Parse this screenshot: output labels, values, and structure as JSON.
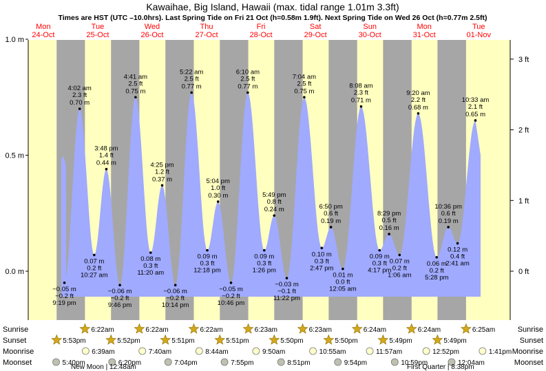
{
  "title": "Kawaihae, Big Island, Hawaii (max. tidal range 1.01m 3.3ft)",
  "subtitle": "Times are HST (UTC –10.0hrs). Last Spring Tide on Fri 21 Oct (h=0.58m 1.9ft). Next Spring Tide on Wed 26 Oct (h=0.77m 2.5ft)",
  "colors": {
    "day": "#ffffc0",
    "night": "#a6a6a6",
    "tide": "#a0aaff",
    "weekday": "#ff0000",
    "axis": "#000000"
  },
  "chart_data": {
    "type": "area",
    "days": [
      {
        "weekday": "Mon",
        "date": "24-Oct"
      },
      {
        "weekday": "Tue",
        "date": "25-Oct"
      },
      {
        "weekday": "Wed",
        "date": "26-Oct"
      },
      {
        "weekday": "Thu",
        "date": "27-Oct"
      },
      {
        "weekday": "Fri",
        "date": "28-Oct"
      },
      {
        "weekday": "Sat",
        "date": "29-Oct"
      },
      {
        "weekday": "Sun",
        "date": "30-Oct"
      },
      {
        "weekday": "Mon",
        "date": "31-Oct"
      },
      {
        "weekday": "Tue",
        "date": "01-Nov"
      }
    ],
    "y_left": {
      "ylim": [
        -0.2,
        1.0
      ],
      "ticks": [
        {
          "value": 0.0,
          "label": "0.0 m"
        },
        {
          "value": 0.5,
          "label": "0.5 m"
        },
        {
          "value": 1.0,
          "label": "1.0 m"
        }
      ]
    },
    "y_right": {
      "ticks": [
        {
          "value_ft": 0,
          "label": "0 ft"
        },
        {
          "value_ft": 1,
          "label": "1 ft"
        },
        {
          "value_ft": 2,
          "label": "2 ft"
        },
        {
          "value_ft": 3,
          "label": "3 ft"
        }
      ]
    },
    "tides": [
      {
        "time": "21:19",
        "label_time": "9:19 pm",
        "m": -0.05,
        "ft": -0.2,
        "type": "low",
        "day": 0
      },
      {
        "time": "04:02",
        "label_time": "4:02 am",
        "m": 0.7,
        "ft": 2.3,
        "type": "high",
        "day": 1
      },
      {
        "time": "10:27",
        "label_time": "10:27 am",
        "m": 0.07,
        "ft": 0.2,
        "type": "low",
        "day": 1
      },
      {
        "time": "15:48",
        "label_time": "3:48 pm",
        "m": 0.44,
        "ft": 1.4,
        "type": "high",
        "day": 1
      },
      {
        "time": "21:46",
        "label_time": "9:46 pm",
        "m": -0.06,
        "ft": -0.2,
        "type": "low",
        "day": 1
      },
      {
        "time": "04:41",
        "label_time": "4:41 am",
        "m": 0.75,
        "ft": 2.5,
        "type": "high",
        "day": 2
      },
      {
        "time": "11:20",
        "label_time": "11:20 am",
        "m": 0.08,
        "ft": 0.3,
        "type": "low",
        "day": 2
      },
      {
        "time": "16:25",
        "label_time": "4:25 pm",
        "m": 0.37,
        "ft": 1.2,
        "type": "high",
        "day": 2
      },
      {
        "time": "22:14",
        "label_time": "10:14 pm",
        "m": -0.06,
        "ft": -0.2,
        "type": "low",
        "day": 2
      },
      {
        "time": "05:22",
        "label_time": "5:22 am",
        "m": 0.77,
        "ft": 2.5,
        "type": "high",
        "day": 3
      },
      {
        "time": "12:18",
        "label_time": "12:18 pm",
        "m": 0.09,
        "ft": 0.3,
        "type": "low",
        "day": 3
      },
      {
        "time": "17:04",
        "label_time": "5:04 pm",
        "m": 0.3,
        "ft": 1.0,
        "type": "high",
        "day": 3
      },
      {
        "time": "22:46",
        "label_time": "10:46 pm",
        "m": -0.05,
        "ft": -0.2,
        "type": "low",
        "day": 3
      },
      {
        "time": "06:10",
        "label_time": "6:10 am",
        "m": 0.77,
        "ft": 2.5,
        "type": "high",
        "day": 4
      },
      {
        "time": "13:26",
        "label_time": "1:26 pm",
        "m": 0.09,
        "ft": 0.3,
        "type": "low",
        "day": 4
      },
      {
        "time": "17:49",
        "label_time": "5:49 pm",
        "m": 0.24,
        "ft": 0.8,
        "type": "high",
        "day": 4
      },
      {
        "time": "23:22",
        "label_time": "11:22 pm",
        "m": -0.03,
        "ft": -0.1,
        "type": "low",
        "day": 4
      },
      {
        "time": "07:04",
        "label_time": "7:04 am",
        "m": 0.75,
        "ft": 2.5,
        "type": "high",
        "day": 5
      },
      {
        "time": "14:47",
        "label_time": "2:47 pm",
        "m": 0.1,
        "ft": 0.3,
        "type": "low",
        "day": 5
      },
      {
        "time": "18:50",
        "label_time": "6:50 pm",
        "m": 0.19,
        "ft": 0.6,
        "type": "high",
        "day": 5
      },
      {
        "time": "00:05",
        "label_time": "12:05 am",
        "m": 0.01,
        "ft": 0.0,
        "type": "low",
        "day": 6
      },
      {
        "time": "08:08",
        "label_time": "8:08 am",
        "m": 0.71,
        "ft": 2.3,
        "type": "high",
        "day": 6
      },
      {
        "time": "16:17",
        "label_time": "4:17 pm",
        "m": 0.09,
        "ft": 0.3,
        "type": "low",
        "day": 6
      },
      {
        "time": "20:29",
        "label_time": "8:29 pm",
        "m": 0.16,
        "ft": 0.5,
        "type": "high",
        "day": 6
      },
      {
        "time": "01:06",
        "label_time": "1:06 am",
        "m": 0.07,
        "ft": 0.2,
        "type": "low",
        "day": 7
      },
      {
        "time": "09:20",
        "label_time": "9:20 am",
        "m": 0.68,
        "ft": 2.2,
        "type": "high",
        "day": 7
      },
      {
        "time": "17:28",
        "label_time": "5:28 pm",
        "m": 0.06,
        "ft": 0.2,
        "type": "low",
        "day": 7
      },
      {
        "time": "22:36",
        "label_time": "10:36 pm",
        "m": 0.19,
        "ft": 0.6,
        "type": "high",
        "day": 7
      },
      {
        "time": "02:41",
        "label_time": "2:41 am",
        "m": 0.12,
        "ft": 0.4,
        "type": "low",
        "day": 8
      },
      {
        "time": "10:33",
        "label_time": "10:33 am",
        "m": 0.65,
        "ft": 2.1,
        "type": "high",
        "day": 8
      }
    ],
    "sunrise": [
      {
        "day": 1,
        "time": "6:22am"
      },
      {
        "day": 2,
        "time": "6:22am"
      },
      {
        "day": 3,
        "time": "6:22am"
      },
      {
        "day": 4,
        "time": "6:23am"
      },
      {
        "day": 5,
        "time": "6:23am"
      },
      {
        "day": 6,
        "time": "6:24am"
      },
      {
        "day": 7,
        "time": "6:24am"
      },
      {
        "day": 8,
        "time": "6:25am"
      }
    ],
    "sunset": [
      {
        "day": 0,
        "time": "5:53pm"
      },
      {
        "day": 1,
        "time": "5:52pm"
      },
      {
        "day": 2,
        "time": "5:51pm"
      },
      {
        "day": 3,
        "time": "5:51pm"
      },
      {
        "day": 4,
        "time": "5:50pm"
      },
      {
        "day": 5,
        "time": "5:50pm"
      },
      {
        "day": 6,
        "time": "5:49pm"
      },
      {
        "day": 7,
        "time": "5:49pm"
      }
    ],
    "moonrise": [
      {
        "day": 1,
        "time": "6:39am"
      },
      {
        "day": 2,
        "time": "7:40am"
      },
      {
        "day": 3,
        "time": "8:44am"
      },
      {
        "day": 4,
        "time": "9:50am"
      },
      {
        "day": 5,
        "time": "10:55am"
      },
      {
        "day": 6,
        "time": "11:57am"
      },
      {
        "day": 7,
        "time": "12:52pm"
      },
      {
        "day": 8,
        "time": "1:41pm"
      }
    ],
    "moonset": [
      {
        "day": 0,
        "time": "5:40pm"
      },
      {
        "day": 1,
        "time": "6:20pm"
      },
      {
        "day": 2,
        "time": "7:04pm"
      },
      {
        "day": 3,
        "time": "7:55pm"
      },
      {
        "day": 4,
        "time": "8:51pm"
      },
      {
        "day": 5,
        "time": "9:54pm"
      },
      {
        "day": 6,
        "time": "10:59pm"
      },
      {
        "day": 8,
        "time": "12:04am"
      }
    ],
    "row_labels": [
      "Sunrise",
      "Sunset",
      "Moonrise",
      "Moonset"
    ],
    "moon_phases": [
      {
        "label": "New Moon | 12:48am",
        "day": 1
      },
      {
        "label": "First Quarter | 8:38pm",
        "day": 7
      }
    ]
  }
}
